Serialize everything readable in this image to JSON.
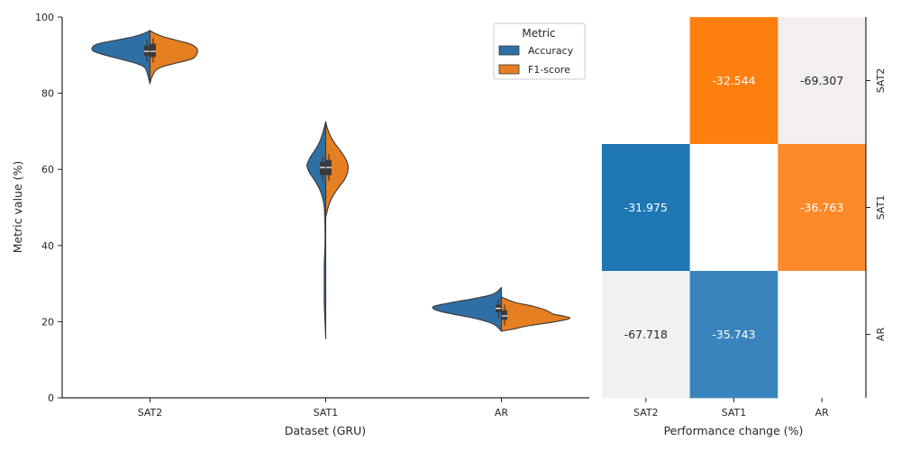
{
  "chart_data": [
    {
      "type": "violin",
      "xlabel": "Dataset (GRU)",
      "ylabel": "Metric value (%)",
      "ylim": [
        0,
        100
      ],
      "yticks": [
        0,
        20,
        40,
        60,
        80,
        100
      ],
      "categories": [
        "SAT2",
        "SAT1",
        "AR"
      ],
      "split": true,
      "legend": {
        "title": "Metric",
        "placement": "top-right",
        "entries": [
          {
            "name": "Accuracy",
            "color": "#2e6fa6"
          },
          {
            "name": "F1-score",
            "color": "#e67e22"
          }
        ]
      },
      "series": [
        {
          "name": "Accuracy",
          "color": "#2e6fa6",
          "violins": [
            {
              "category": "SAT2",
              "min": 82.5,
              "max": 96.5,
              "q1": 89.8,
              "median": 91.0,
              "q3": 92.5,
              "profile": [
                [
                  82.5,
                  0.0
                ],
                [
                  84,
                  0.02
                ],
                [
                  86,
                  0.05
                ],
                [
                  87,
                  0.09
                ],
                [
                  88,
                  0.22
                ],
                [
                  89,
                  0.42
                ],
                [
                  90,
                  0.62
                ],
                [
                  91,
                  0.78
                ],
                [
                  92,
                  0.8
                ],
                [
                  93,
                  0.72
                ],
                [
                  94,
                  0.45
                ],
                [
                  95,
                  0.2
                ],
                [
                  96,
                  0.05
                ],
                [
                  96.5,
                  0.0
                ]
              ]
            },
            {
              "category": "SAT1",
              "min": 15.5,
              "max": 72.5,
              "q1": 58.5,
              "median": 60.5,
              "q3": 62.0,
              "profile": [
                [
                  15.5,
                  0.0
                ],
                [
                  20,
                  0.01
                ],
                [
                  25,
                  0.02
                ],
                [
                  30,
                  0.02
                ],
                [
                  35,
                  0.02
                ],
                [
                  40,
                  0.01
                ],
                [
                  45,
                  0.01
                ],
                [
                  50,
                  0.02
                ],
                [
                  53,
                  0.05
                ],
                [
                  55,
                  0.09
                ],
                [
                  57,
                  0.15
                ],
                [
                  59,
                  0.22
                ],
                [
                  61,
                  0.26
                ],
                [
                  63,
                  0.22
                ],
                [
                  65,
                  0.15
                ],
                [
                  67,
                  0.09
                ],
                [
                  69,
                  0.05
                ],
                [
                  71,
                  0.02
                ],
                [
                  72.5,
                  0.0
                ]
              ]
            },
            {
              "category": "AR",
              "min": 17.5,
              "max": 29.0,
              "q1": 22.5,
              "median": 23.5,
              "q3": 24.5,
              "profile": [
                [
                  17.5,
                  0.0
                ],
                [
                  19,
                  0.08
                ],
                [
                  20,
                  0.2
                ],
                [
                  21,
                  0.4
                ],
                [
                  22,
                  0.68
                ],
                [
                  23,
                  0.9
                ],
                [
                  24,
                  0.94
                ],
                [
                  25,
                  0.7
                ],
                [
                  26,
                  0.4
                ],
                [
                  27,
                  0.15
                ],
                [
                  28,
                  0.05
                ],
                [
                  29,
                  0.0
                ]
              ]
            }
          ]
        },
        {
          "name": "F1-score",
          "color": "#e67e22",
          "violins": [
            {
              "category": "SAT2",
              "min": 82.5,
              "max": 96.5,
              "q1": 89.5,
              "median": 91.0,
              "q3": 93.0,
              "profile": [
                [
                  82.5,
                  0.0
                ],
                [
                  84,
                  0.02
                ],
                [
                  86,
                  0.08
                ],
                [
                  87,
                  0.18
                ],
                [
                  88,
                  0.38
                ],
                [
                  89,
                  0.58
                ],
                [
                  90,
                  0.64
                ],
                [
                  91,
                  0.66
                ],
                [
                  92,
                  0.64
                ],
                [
                  93,
                  0.55
                ],
                [
                  94,
                  0.35
                ],
                [
                  95,
                  0.16
                ],
                [
                  96,
                  0.04
                ],
                [
                  96.5,
                  0.0
                ]
              ]
            },
            {
              "category": "SAT1",
              "min": 47.5,
              "max": 72.5,
              "q1": 58.5,
              "median": 60.5,
              "q3": 62.5,
              "profile": [
                [
                  47.5,
                  0.0
                ],
                [
                  49,
                  0.02
                ],
                [
                  51,
                  0.05
                ],
                [
                  53,
                  0.1
                ],
                [
                  55,
                  0.17
                ],
                [
                  57,
                  0.25
                ],
                [
                  59,
                  0.3
                ],
                [
                  61,
                  0.31
                ],
                [
                  63,
                  0.27
                ],
                [
                  65,
                  0.2
                ],
                [
                  67,
                  0.12
                ],
                [
                  69,
                  0.06
                ],
                [
                  71,
                  0.02
                ],
                [
                  72.5,
                  0.0
                ]
              ]
            },
            {
              "category": "AR",
              "min": 17.5,
              "max": 26.5,
              "q1": 20.5,
              "median": 21.5,
              "q3": 23.0,
              "profile": [
                [
                  17.5,
                  0.0
                ],
                [
                  18,
                  0.15
                ],
                [
                  19,
                  0.4
                ],
                [
                  20,
                  0.75
                ],
                [
                  21,
                  0.95
                ],
                [
                  22,
                  0.72
                ],
                [
                  23,
                  0.62
                ],
                [
                  24,
                  0.45
                ],
                [
                  25,
                  0.2
                ],
                [
                  26,
                  0.06
                ],
                [
                  26.5,
                  0.0
                ]
              ]
            }
          ]
        }
      ]
    },
    {
      "type": "heatmap",
      "xlabel": "Performance change (%)",
      "x_categories": [
        "SAT2",
        "SAT1",
        "AR"
      ],
      "y_categories": [
        "SAT2",
        "SAT1",
        "AR"
      ],
      "y_axis_side": "right",
      "cells": [
        {
          "row": 0,
          "col": 0,
          "value": null,
          "color": "#ffffff"
        },
        {
          "row": 0,
          "col": 1,
          "value": "-32.544",
          "color": "#ff7f0e",
          "text_color": "#ffffff"
        },
        {
          "row": 0,
          "col": 2,
          "value": "-69.307",
          "color": "#f2efee",
          "text_color": "#262626"
        },
        {
          "row": 1,
          "col": 0,
          "value": "-31.975",
          "color": "#1f77b4",
          "text_color": "#ffffff"
        },
        {
          "row": 1,
          "col": 1,
          "value": null,
          "color": "#ffffff"
        },
        {
          "row": 1,
          "col": 2,
          "value": "-36.763",
          "color": "#ff8a2a",
          "text_color": "#ffffff"
        },
        {
          "row": 2,
          "col": 0,
          "value": "-67.718",
          "color": "#f0f1f2",
          "text_color": "#262626"
        },
        {
          "row": 2,
          "col": 1,
          "value": "-35.743",
          "color": "#3a84bd",
          "text_color": "#ffffff"
        },
        {
          "row": 2,
          "col": 2,
          "value": null,
          "color": "#ffffff"
        }
      ]
    }
  ]
}
